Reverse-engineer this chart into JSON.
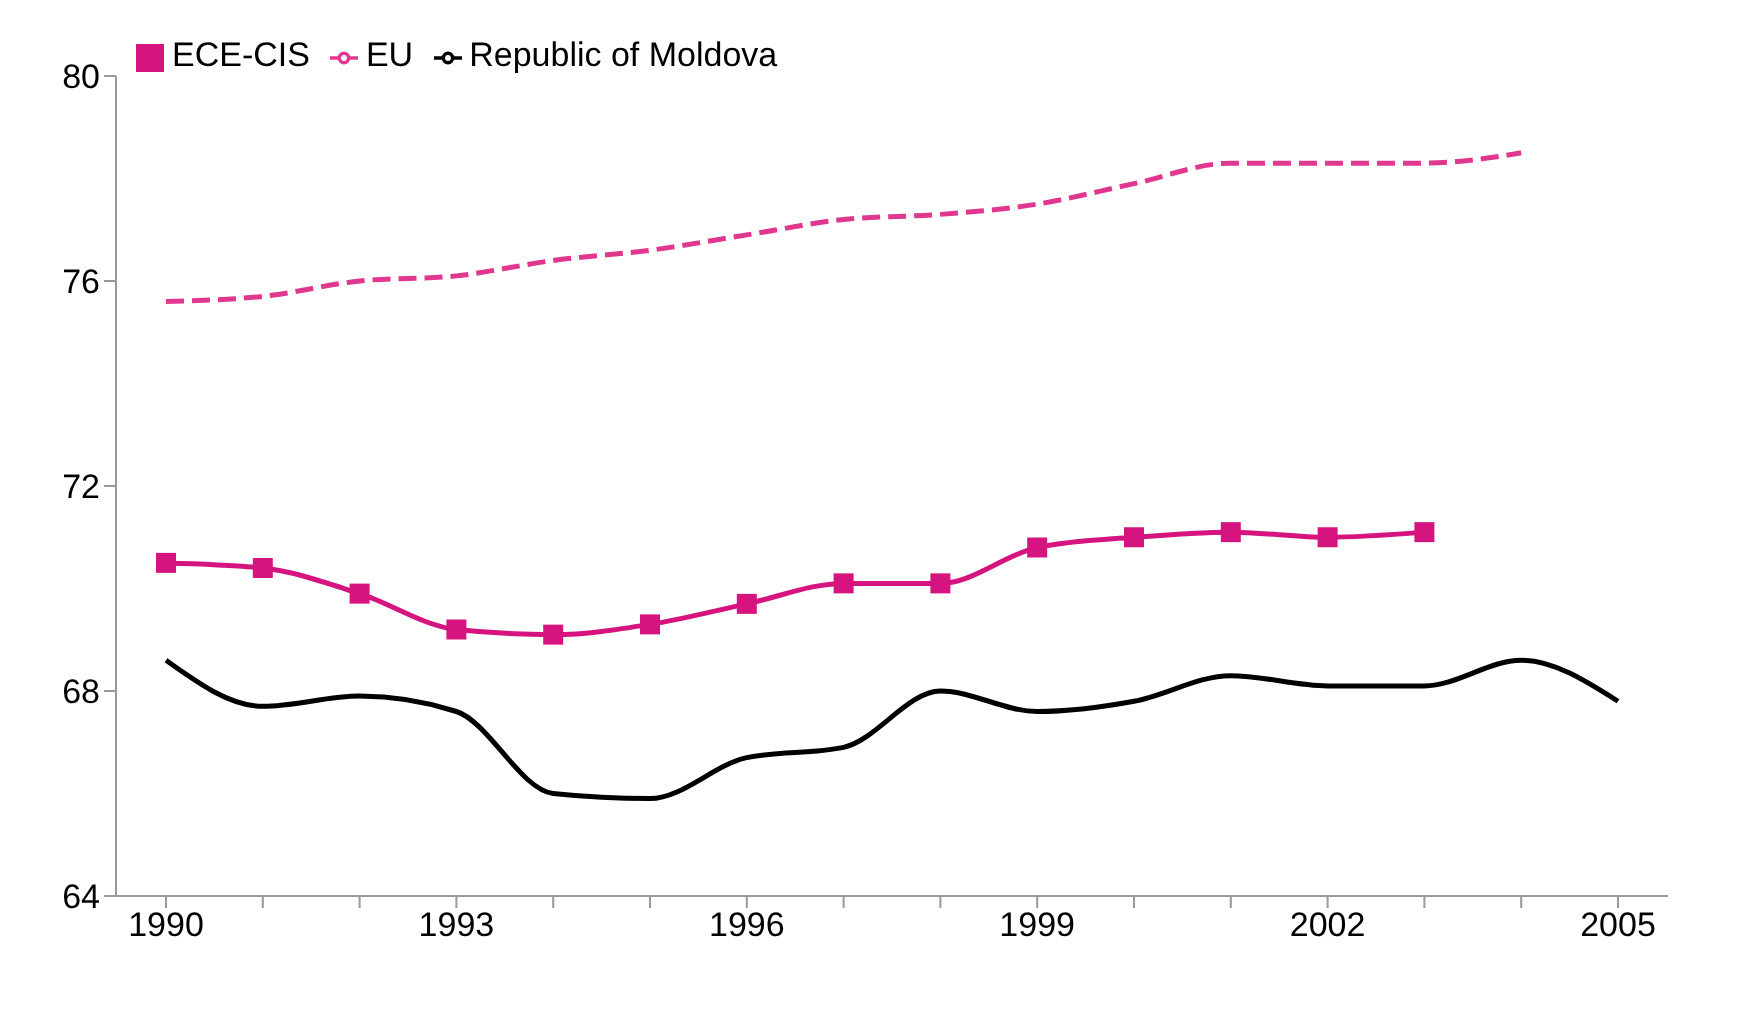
{
  "chart_data": {
    "type": "line",
    "categories": [
      "1990",
      null,
      null,
      "1993",
      null,
      null,
      "1996",
      null,
      null,
      "1999",
      null,
      null,
      "2002",
      null,
      null,
      "2005"
    ],
    "series": [
      {
        "name": "Republic of Moldova",
        "color": "#000000",
        "line_style": "solid",
        "marker": "none",
        "values": [
          68.6,
          67.7,
          67.9,
          67.6,
          66.0,
          65.9,
          66.7,
          66.9,
          68.0,
          67.6,
          67.8,
          68.3,
          68.1,
          68.1,
          68.6,
          67.8
        ]
      },
      {
        "name": "EU",
        "color": "#e0388e",
        "line_style": "dashed",
        "marker": "none",
        "values": [
          75.6,
          75.7,
          76.0,
          76.1,
          76.4,
          76.6,
          76.9,
          77.2,
          77.3,
          77.5,
          77.9,
          78.3,
          78.3,
          78.3,
          78.5,
          null
        ]
      },
      {
        "name": "ECE-CIS",
        "color": "#d6147f",
        "line_style": "solid",
        "marker": "square",
        "values": [
          70.5,
          70.4,
          69.9,
          69.2,
          69.1,
          69.3,
          69.7,
          70.1,
          70.1,
          70.8,
          71.0,
          71.1,
          71.0,
          71.1,
          null,
          null
        ]
      }
    ],
    "ylim": [
      64,
      80
    ],
    "yticks": [
      64,
      68,
      72,
      76,
      80
    ],
    "grid": false,
    "legend": "top left"
  }
}
